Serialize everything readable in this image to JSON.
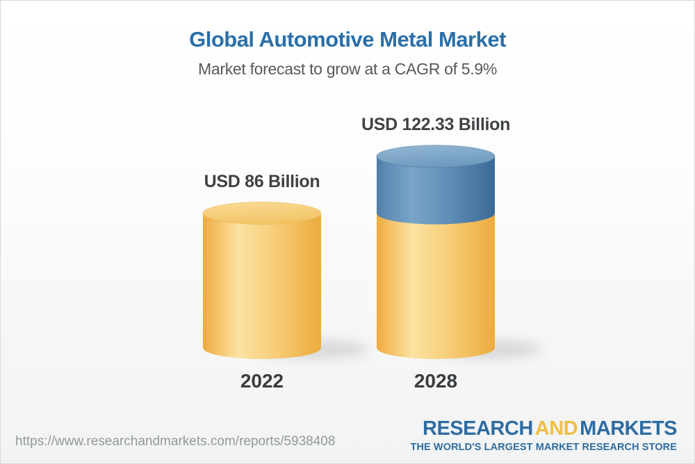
{
  "header": {
    "title": "Global Automotive Metal Market",
    "subtitle": "Market forecast to grow at a CAGR of 5.9%"
  },
  "chart_data": {
    "type": "bar",
    "style": "3d-cylinder",
    "categories": [
      "2022",
      "2028"
    ],
    "values": [
      86,
      122.33
    ],
    "value_labels": [
      "USD 86 Billion",
      "USD 122.33 Billion"
    ],
    "unit": "USD Billion",
    "cagr_pct": 5.9,
    "title": "Global Automotive Metal Market",
    "xlabel": "",
    "ylabel": "",
    "grid": false,
    "legend": "none",
    "segments_2028": {
      "base_value": 86,
      "growth_value": 36.33
    },
    "colors": {
      "base_segment_yellow": "#F6CF7D",
      "growth_segment_blue": "#5E8DB4",
      "title_blue": "#2A6FA9",
      "subtitle_gray": "#55585A",
      "label_dark": "#3F4245"
    }
  },
  "footer": {
    "url": "https://www.researchandmarkets.com/reports/5938408",
    "logo": {
      "word1": "RESEARCH",
      "word2": "AND",
      "word3": "MARKETS",
      "tagline": "THE WORLD'S LARGEST MARKET RESEARCH STORE",
      "blue": "#2E6CA2",
      "yellow": "#EFBE45"
    }
  }
}
